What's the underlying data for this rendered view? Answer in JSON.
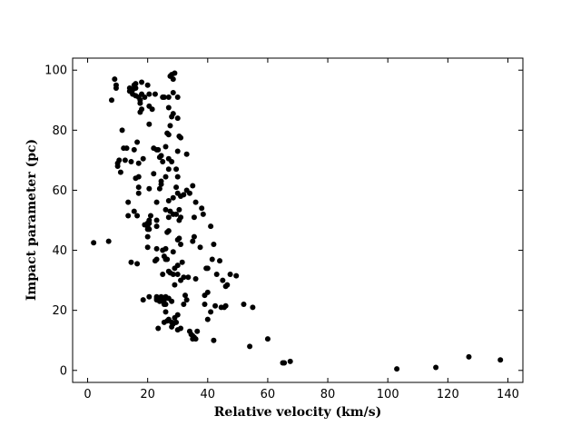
{
  "chart_data": {
    "type": "scatter",
    "title": "",
    "xlabel": "Relative velocity (km/s)",
    "ylabel": "Impact parameter (pc)",
    "xlim": [
      -5,
      145
    ],
    "ylim": [
      -4,
      104
    ],
    "xticks": [
      0,
      20,
      40,
      60,
      80,
      100,
      120,
      140
    ],
    "yticks": [
      0,
      20,
      40,
      60,
      80,
      100
    ],
    "xtick_labels": [
      "0",
      "20",
      "40",
      "60",
      "80",
      "100",
      "120",
      "140"
    ],
    "ytick_labels": [
      "0",
      "20",
      "40",
      "60",
      "80",
      "100"
    ],
    "grid": false,
    "legend": "none",
    "marker_color": "#000000",
    "series": [
      {
        "name": "data",
        "points": [
          [
            2,
            42.5
          ],
          [
            7,
            43
          ],
          [
            8,
            90
          ],
          [
            9,
            97
          ],
          [
            9.5,
            94
          ],
          [
            9.5,
            95
          ],
          [
            10,
            68
          ],
          [
            10,
            69
          ],
          [
            10.5,
            70
          ],
          [
            11,
            66
          ],
          [
            11.5,
            80
          ],
          [
            12,
            74
          ],
          [
            12.5,
            70
          ],
          [
            13,
            74
          ],
          [
            13.5,
            56
          ],
          [
            13.5,
            51.5
          ],
          [
            14,
            93
          ],
          [
            14,
            94
          ],
          [
            14.5,
            69.5
          ],
          [
            14.5,
            36
          ],
          [
            15,
            92
          ],
          [
            15,
            93.5
          ],
          [
            15.5,
            95
          ],
          [
            15.5,
            53
          ],
          [
            15.5,
            73.5
          ],
          [
            16,
            94
          ],
          [
            16,
            95.5
          ],
          [
            16,
            91.5
          ],
          [
            16,
            64
          ],
          [
            16.5,
            76
          ],
          [
            16.5,
            51.5
          ],
          [
            16.5,
            35.5
          ],
          [
            17,
            91
          ],
          [
            17,
            69
          ],
          [
            17,
            61
          ],
          [
            17,
            59
          ],
          [
            17,
            64.5
          ],
          [
            17.5,
            90
          ],
          [
            17.5,
            86
          ],
          [
            17.5,
            89
          ],
          [
            18,
            87
          ],
          [
            18,
            92
          ],
          [
            18,
            96
          ],
          [
            18.5,
            70.5
          ],
          [
            18.5,
            23.5
          ],
          [
            19,
            91
          ],
          [
            19,
            48.5
          ],
          [
            20,
            95
          ],
          [
            20,
            49
          ],
          [
            20,
            48
          ],
          [
            20,
            47
          ],
          [
            20,
            44.5
          ],
          [
            20,
            41
          ],
          [
            20.5,
            88
          ],
          [
            20.5,
            92
          ],
          [
            20.5,
            82
          ],
          [
            20.5,
            60.5
          ],
          [
            20.5,
            50
          ],
          [
            20.5,
            49
          ],
          [
            20.5,
            47
          ],
          [
            20.5,
            24.5
          ],
          [
            21,
            51.5
          ],
          [
            21.5,
            87
          ],
          [
            22,
            74
          ],
          [
            22,
            65.5
          ],
          [
            22.5,
            92
          ],
          [
            22.5,
            36.5
          ],
          [
            23,
            37
          ],
          [
            23,
            73.5
          ],
          [
            23,
            56
          ],
          [
            23,
            50
          ],
          [
            23,
            48
          ],
          [
            23,
            40.5
          ],
          [
            23,
            24.5
          ],
          [
            23,
            23.5
          ],
          [
            23,
            24
          ],
          [
            23.5,
            73.5
          ],
          [
            23.5,
            14
          ],
          [
            24,
            71
          ],
          [
            24,
            60.5
          ],
          [
            24,
            24
          ],
          [
            24,
            23
          ],
          [
            24.5,
            71.5
          ],
          [
            24.5,
            63
          ],
          [
            24.5,
            62
          ],
          [
            24.5,
            24.5
          ],
          [
            25,
            91
          ],
          [
            25,
            69.5
          ],
          [
            25,
            40
          ],
          [
            25,
            32
          ],
          [
            25,
            24
          ],
          [
            25,
            23
          ],
          [
            25.5,
            91
          ],
          [
            25.5,
            38
          ],
          [
            25.5,
            23.5
          ],
          [
            25.5,
            22
          ],
          [
            25.5,
            16
          ],
          [
            26,
            74.5
          ],
          [
            26,
            64.5
          ],
          [
            26,
            53.5
          ],
          [
            26,
            40.5
          ],
          [
            26,
            37
          ],
          [
            26,
            24.5
          ],
          [
            26,
            22
          ],
          [
            26,
            19.5
          ],
          [
            26.5,
            79
          ],
          [
            26.5,
            46
          ],
          [
            26.5,
            37
          ],
          [
            26.5,
            16.5
          ],
          [
            27,
            91
          ],
          [
            27,
            87.5
          ],
          [
            27,
            78.5
          ],
          [
            27,
            70.5
          ],
          [
            27,
            67
          ],
          [
            27,
            56.5
          ],
          [
            27,
            51
          ],
          [
            27,
            46.5
          ],
          [
            27,
            33
          ],
          [
            27,
            24
          ],
          [
            27,
            17
          ],
          [
            27.5,
            98
          ],
          [
            27.5,
            81.5
          ],
          [
            27.5,
            53
          ],
          [
            27.5,
            32.5
          ],
          [
            28,
            69.5
          ],
          [
            28,
            84.5
          ],
          [
            28,
            98.5
          ],
          [
            28,
            16
          ],
          [
            28,
            14.5
          ],
          [
            28,
            23
          ],
          [
            28.5,
            92.5
          ],
          [
            28.5,
            85.5
          ],
          [
            28.5,
            97
          ],
          [
            28.5,
            57.5
          ],
          [
            28.5,
            52
          ],
          [
            28.5,
            39.5
          ],
          [
            28.5,
            32
          ],
          [
            28.5,
            15.5
          ],
          [
            29,
            99
          ],
          [
            29,
            28.5
          ],
          [
            29,
            34
          ],
          [
            29,
            17.5
          ],
          [
            29.5,
            67
          ],
          [
            29.5,
            61
          ],
          [
            29.5,
            52
          ],
          [
            29.5,
            16
          ],
          [
            30,
            91
          ],
          [
            30,
            84
          ],
          [
            30,
            73
          ],
          [
            30,
            64.5
          ],
          [
            30,
            59
          ],
          [
            30,
            43.5
          ],
          [
            30,
            35
          ],
          [
            30,
            32
          ],
          [
            30,
            18.5
          ],
          [
            30,
            13.5
          ],
          [
            30.5,
            78
          ],
          [
            30.5,
            53.5
          ],
          [
            30.5,
            50
          ],
          [
            30.5,
            44
          ],
          [
            31,
            77.5
          ],
          [
            31,
            58
          ],
          [
            31,
            51
          ],
          [
            31,
            42
          ],
          [
            31,
            30
          ],
          [
            31,
            14
          ],
          [
            31.5,
            36
          ],
          [
            32,
            58.5
          ],
          [
            32,
            31
          ],
          [
            32,
            22
          ],
          [
            32.5,
            25
          ],
          [
            33,
            72
          ],
          [
            33,
            23.5
          ],
          [
            33,
            60
          ],
          [
            33.5,
            31
          ],
          [
            34,
            59
          ],
          [
            34,
            13
          ],
          [
            34.5,
            12
          ],
          [
            35,
            61.5
          ],
          [
            35,
            43
          ],
          [
            35,
            11.5
          ],
          [
            35,
            10.5
          ],
          [
            35.5,
            44.5
          ],
          [
            35.5,
            51
          ],
          [
            35.5,
            11
          ],
          [
            36,
            10.5
          ],
          [
            36,
            56
          ],
          [
            36,
            30.5
          ],
          [
            36.5,
            13
          ],
          [
            37.5,
            41
          ],
          [
            38,
            54
          ],
          [
            38.5,
            52
          ],
          [
            39,
            25
          ],
          [
            39,
            22
          ],
          [
            39.5,
            34
          ],
          [
            40,
            34
          ],
          [
            40,
            26
          ],
          [
            40,
            17
          ],
          [
            41,
            48
          ],
          [
            41,
            19.5
          ],
          [
            41.5,
            37
          ],
          [
            42,
            42
          ],
          [
            42,
            10
          ],
          [
            42.5,
            21.5
          ],
          [
            43,
            32
          ],
          [
            44,
            36.5
          ],
          [
            44.5,
            21
          ],
          [
            45,
            30
          ],
          [
            45.5,
            21
          ],
          [
            46,
            28
          ],
          [
            46,
            21.5
          ],
          [
            46.5,
            28.5
          ],
          [
            47.5,
            32
          ],
          [
            49.5,
            31.5
          ],
          [
            52,
            22
          ],
          [
            54,
            8
          ],
          [
            55,
            21
          ],
          [
            60,
            10.5
          ],
          [
            65,
            2.5
          ],
          [
            65.5,
            2.5
          ],
          [
            67.5,
            3
          ],
          [
            103,
            0.5
          ],
          [
            116,
            1
          ],
          [
            127,
            4.5
          ],
          [
            137.5,
            3.5
          ]
        ]
      }
    ]
  }
}
